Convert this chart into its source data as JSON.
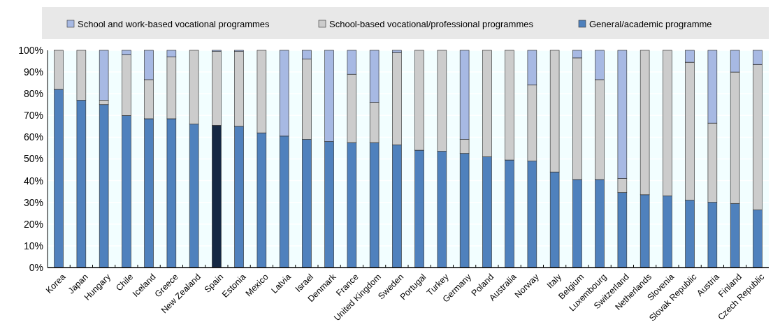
{
  "chart_data": {
    "type": "bar",
    "stacked": true,
    "categories": [
      "Korea",
      "Japan",
      "Hungary",
      "Chile",
      "Iceland",
      "Greece",
      "New Zealand",
      "Spain",
      "Estonia",
      "Mexico",
      "Latvia",
      "Israel",
      "Denmark",
      "France",
      "United Kingdom",
      "Sweden",
      "Portugal",
      "Turkey",
      "Germany",
      "Poland",
      "Australia",
      "Norway",
      "Italy",
      "Belgium",
      "Luxembourg",
      "Switzerland",
      "Netherlands",
      "Slovenia",
      "Slovak Republic",
      "Austria",
      "Finland",
      "Czech Republic"
    ],
    "series": [
      {
        "name": "General/academic programme",
        "color": "#4f81bd",
        "colors": [
          "#4f81bd",
          "#4f81bd",
          "#4f81bd",
          "#4f81bd",
          "#4f81bd",
          "#4f81bd",
          "#4f81bd",
          "#152843",
          "#4f81bd",
          "#4f81bd",
          "#4f81bd",
          "#4f81bd",
          "#4f81bd",
          "#4f81bd",
          "#4f81bd",
          "#4f81bd",
          "#4f81bd",
          "#4f81bd",
          "#4f81bd",
          "#4f81bd",
          "#4f81bd",
          "#4f81bd",
          "#4f81bd",
          "#4f81bd",
          "#4f81bd",
          "#4f81bd",
          "#4f81bd",
          "#4f81bd",
          "#4f81bd",
          "#4f81bd",
          "#4f81bd",
          "#4f81bd"
        ],
        "values": [
          82,
          77,
          75,
          70,
          68.5,
          68.5,
          66,
          65.5,
          65,
          62,
          60.5,
          59,
          58,
          57.5,
          57.5,
          56.5,
          54,
          53.5,
          52.5,
          51,
          49.5,
          49,
          44,
          40.5,
          40.5,
          34.5,
          33.5,
          33,
          31,
          30,
          29.5,
          26.5
        ]
      },
      {
        "name": "School-based vocational/professional programmes",
        "color": "#cccccc",
        "values": [
          18,
          23,
          2,
          28,
          18,
          28.5,
          34,
          34,
          34.5,
          38,
          0,
          37,
          0,
          31.5,
          18.5,
          42.5,
          46,
          46.5,
          6.5,
          49,
          50.5,
          35,
          56,
          56,
          46,
          6.5,
          66.5,
          67,
          63.5,
          36.5,
          60.5,
          67
        ]
      },
      {
        "name": "School and work-based vocational programmes",
        "color": "#a7b9e3",
        "values": [
          0,
          0,
          23,
          2,
          13.5,
          3,
          0,
          0.5,
          0.5,
          0,
          39.5,
          4,
          42,
          11,
          24,
          1,
          0,
          0,
          41,
          0,
          0,
          16,
          0,
          3.5,
          13.5,
          59,
          0,
          0,
          5.5,
          33.5,
          10,
          6.5
        ]
      }
    ],
    "ylim": [
      0,
      100
    ],
    "yticks": [
      {
        "value": 0,
        "label": "0%"
      },
      {
        "value": 10,
        "label": "10%"
      },
      {
        "value": 20,
        "label": "20%"
      },
      {
        "value": 30,
        "label": "30%"
      },
      {
        "value": 40,
        "label": "40%"
      },
      {
        "value": 50,
        "label": "50%"
      },
      {
        "value": 60,
        "label": "60%"
      },
      {
        "value": 70,
        "label": "70%"
      },
      {
        "value": 80,
        "label": "80%"
      },
      {
        "value": 90,
        "label": "90%"
      },
      {
        "value": 100,
        "label": "100%"
      }
    ],
    "grid": "y",
    "legend": "top"
  }
}
